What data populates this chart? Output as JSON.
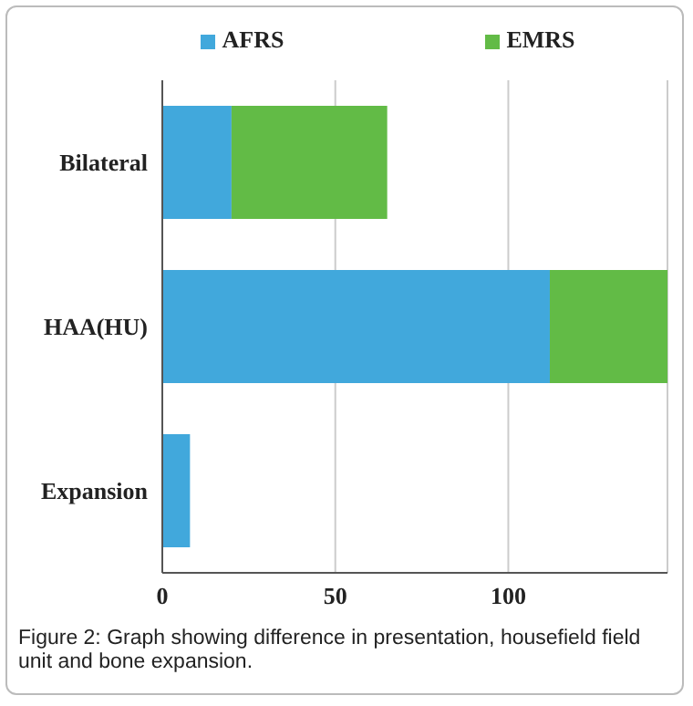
{
  "chart_data": {
    "type": "bar",
    "orientation": "horizontal",
    "stacked": true,
    "categories": [
      "Bilateral",
      "HAA(HU)",
      "Expansion"
    ],
    "series": [
      {
        "name": "AFRS",
        "color": "#41a8dc",
        "values": [
          20,
          112,
          8
        ]
      },
      {
        "name": "EMRS",
        "color": "#62bb46",
        "values": [
          45,
          34,
          null
        ]
      }
    ],
    "xlim": [
      0,
      146
    ],
    "xticks": [
      0,
      50,
      100
    ],
    "grid": "x",
    "legend": "top",
    "annotations": [
      "Figure 2: Graph showing difference in presentation, housefield field unit and bone expansion."
    ]
  }
}
